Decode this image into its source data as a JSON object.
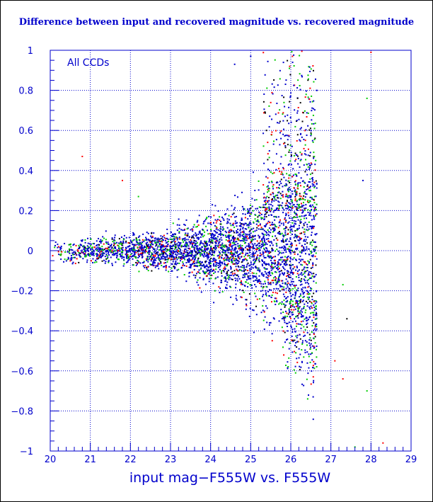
{
  "chart_data": {
    "type": "scatter",
    "title": "Difference between input and recovered magnitude vs. recovered magnitude",
    "xlabel": "input mag−F555W vs. F555W",
    "ylabel": "",
    "annotation": "All CCDs",
    "xlim": [
      20,
      29
    ],
    "ylim": [
      -1,
      1
    ],
    "x_ticks": [
      "20",
      "21",
      "22",
      "23",
      "24",
      "25",
      "26",
      "27",
      "28",
      "29"
    ],
    "y_ticks": [
      "1",
      "0.8",
      "0.6",
      "0.4",
      "0.2",
      "0",
      "−0.2",
      "−0.4",
      "−0.6",
      "−0.8",
      "−1"
    ],
    "grid": true,
    "point_colors": [
      "#0000cc",
      "#00cc00",
      "#ff0000",
      "#000000"
    ],
    "envelope": {
      "description": "scatter about 0 widening with magnitude, cutoff near 26.7",
      "x": [
        20.0,
        21.0,
        22.0,
        23.0,
        23.5,
        24.0,
        24.5,
        25.0,
        25.5,
        26.0,
        26.3,
        26.6
      ],
      "spread": [
        0.025,
        0.03,
        0.04,
        0.05,
        0.065,
        0.08,
        0.1,
        0.13,
        0.17,
        0.22,
        0.3,
        0.38
      ]
    },
    "outliers": [
      {
        "x": 20.8,
        "y": 0.47,
        "color": "#ff0000"
      },
      {
        "x": 21.8,
        "y": 0.35,
        "color": "#ff0000"
      },
      {
        "x": 22.2,
        "y": 0.27,
        "color": "#00cc00"
      },
      {
        "x": 24.6,
        "y": 0.93,
        "color": "#0000cc"
      },
      {
        "x": 25.0,
        "y": 0.97,
        "color": "#0000cc"
      },
      {
        "x": 27.8,
        "y": 0.35,
        "color": "#0000cc"
      },
      {
        "x": 27.9,
        "y": 0.76,
        "color": "#00cc00"
      },
      {
        "x": 27.3,
        "y": -0.17,
        "color": "#00cc00"
      },
      {
        "x": 27.4,
        "y": -0.34,
        "color": "#000000"
      },
      {
        "x": 27.1,
        "y": -0.55,
        "color": "#ff0000"
      },
      {
        "x": 27.3,
        "y": -0.64,
        "color": "#ff0000"
      },
      {
        "x": 27.9,
        "y": -0.7,
        "color": "#00cc00"
      },
      {
        "x": 28.3,
        "y": -0.96,
        "color": "#ff0000"
      },
      {
        "x": 28.0,
        "y": 0.99,
        "color": "#ff0000"
      },
      {
        "x": 27.6,
        "y": -0.98,
        "color": "#00cc00"
      }
    ]
  }
}
